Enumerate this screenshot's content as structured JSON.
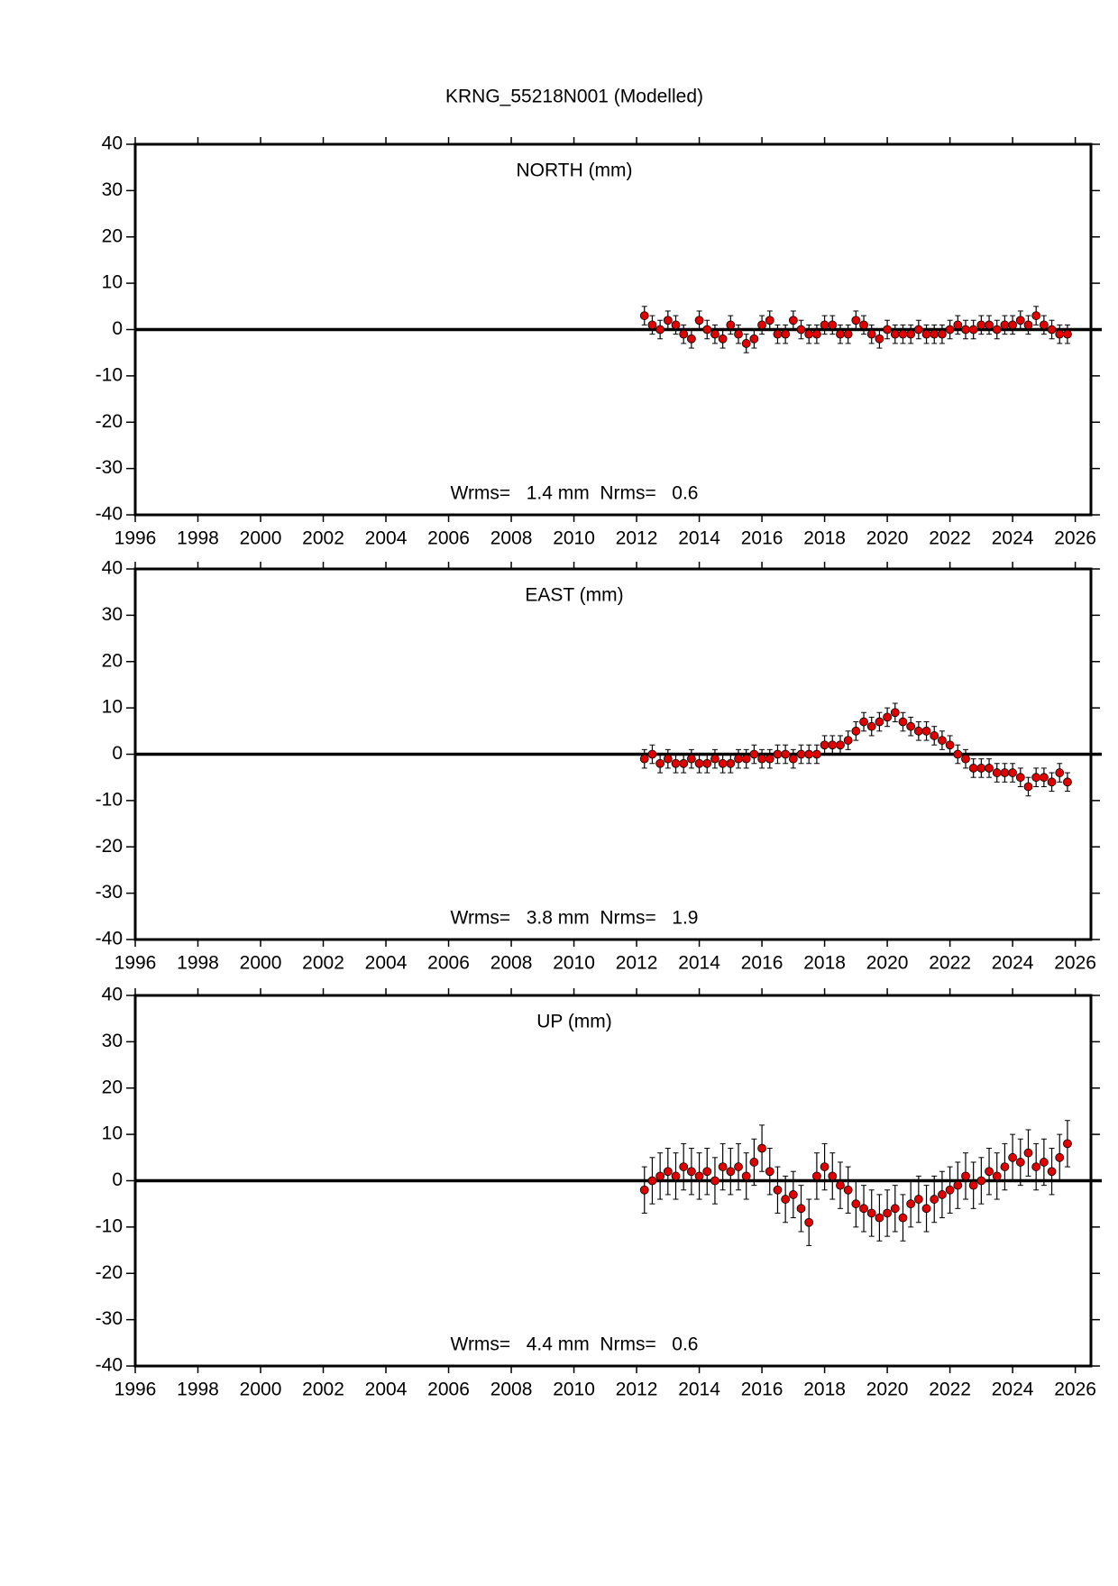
{
  "title": "KRNG_55218N001 (Modelled)",
  "chart_data": [
    {
      "type": "scatter",
      "label": "NORTH (mm)",
      "annotation": "Wrms=   1.4 mm  Nrms=   0.6",
      "xlim": [
        1996,
        2026.5
      ],
      "xticks": [
        1996,
        1998,
        2000,
        2002,
        2004,
        2006,
        2008,
        2010,
        2012,
        2014,
        2016,
        2018,
        2020,
        2022,
        2024,
        2026
      ],
      "ylim": [
        -40,
        40
      ],
      "yticks": [
        -40,
        -30,
        -20,
        -10,
        0,
        10,
        20,
        30,
        40
      ],
      "hline": 0,
      "color": "#e00000",
      "error": 2,
      "x": [
        2012.25,
        2012.5,
        2012.75,
        2013,
        2013.25,
        2013.5,
        2013.75,
        2014,
        2014.25,
        2014.5,
        2014.75,
        2015,
        2015.25,
        2015.5,
        2015.75,
        2016,
        2016.25,
        2016.5,
        2016.75,
        2017,
        2017.25,
        2017.5,
        2017.75,
        2018,
        2018.25,
        2018.5,
        2018.75,
        2019,
        2019.25,
        2019.5,
        2019.75,
        2020,
        2020.25,
        2020.5,
        2020.75,
        2021,
        2021.25,
        2021.5,
        2021.75,
        2022,
        2022.25,
        2022.5,
        2022.75,
        2023,
        2023.25,
        2023.5,
        2023.75,
        2024,
        2024.25,
        2024.5,
        2024.75,
        2025,
        2025.25,
        2025.5,
        2025.75
      ],
      "values": [
        3,
        1,
        0,
        2,
        1,
        -1,
        -2,
        2,
        0,
        -1,
        -2,
        1,
        -1,
        -3,
        -2,
        1,
        2,
        -1,
        -1,
        2,
        0,
        -1,
        -1,
        1,
        1,
        -1,
        -1,
        2,
        1,
        -1,
        -2,
        0,
        -1,
        -1,
        -1,
        0,
        -1,
        -1,
        -1,
        0,
        1,
        0,
        0,
        1,
        1,
        0,
        1,
        1,
        2,
        1,
        3,
        1,
        0,
        -1,
        -1
      ]
    },
    {
      "type": "scatter",
      "label": "EAST (mm)",
      "annotation": "Wrms=   3.8 mm  Nrms=   1.9",
      "xlim": [
        1996,
        2026.5
      ],
      "xticks": [
        1996,
        1998,
        2000,
        2002,
        2004,
        2006,
        2008,
        2010,
        2012,
        2014,
        2016,
        2018,
        2020,
        2022,
        2024,
        2026
      ],
      "ylim": [
        -40,
        40
      ],
      "yticks": [
        -40,
        -30,
        -20,
        -10,
        0,
        10,
        20,
        30,
        40
      ],
      "hline": 0,
      "color": "#e00000",
      "error": 2,
      "x": [
        2012.25,
        2012.5,
        2012.75,
        2013,
        2013.25,
        2013.5,
        2013.75,
        2014,
        2014.25,
        2014.5,
        2014.75,
        2015,
        2015.25,
        2015.5,
        2015.75,
        2016,
        2016.25,
        2016.5,
        2016.75,
        2017,
        2017.25,
        2017.5,
        2017.75,
        2018,
        2018.25,
        2018.5,
        2018.75,
        2019,
        2019.25,
        2019.5,
        2019.75,
        2020,
        2020.25,
        2020.5,
        2020.75,
        2021,
        2021.25,
        2021.5,
        2021.75,
        2022,
        2022.25,
        2022.5,
        2022.75,
        2023,
        2023.25,
        2023.5,
        2023.75,
        2024,
        2024.25,
        2024.5,
        2024.75,
        2025,
        2025.25,
        2025.5,
        2025.75
      ],
      "values": [
        -1,
        0,
        -2,
        -1,
        -2,
        -2,
        -1,
        -2,
        -2,
        -1,
        -2,
        -2,
        -1,
        -1,
        0,
        -1,
        -1,
        0,
        0,
        -1,
        0,
        0,
        0,
        2,
        2,
        2,
        3,
        5,
        7,
        6,
        7,
        8,
        9,
        7,
        6,
        5,
        5,
        4,
        3,
        2,
        0,
        -1,
        -3,
        -3,
        -3,
        -4,
        -4,
        -4,
        -5,
        -7,
        -5,
        -5,
        -6,
        -4,
        -6
      ]
    },
    {
      "type": "scatter",
      "label": "UP (mm)",
      "annotation": "Wrms=   4.4 mm  Nrms=   0.6",
      "xlim": [
        1996,
        2026.5
      ],
      "xticks": [
        1996,
        1998,
        2000,
        2002,
        2004,
        2006,
        2008,
        2010,
        2012,
        2014,
        2016,
        2018,
        2020,
        2022,
        2024,
        2026
      ],
      "ylim": [
        -40,
        40
      ],
      "yticks": [
        -40,
        -30,
        -20,
        -10,
        0,
        10,
        20,
        30,
        40
      ],
      "hline": 0,
      "color": "#e00000",
      "error": 5,
      "x": [
        2012.25,
        2012.5,
        2012.75,
        2013,
        2013.25,
        2013.5,
        2013.75,
        2014,
        2014.25,
        2014.5,
        2014.75,
        2015,
        2015.25,
        2015.5,
        2015.75,
        2016,
        2016.25,
        2016.5,
        2016.75,
        2017,
        2017.25,
        2017.5,
        2017.75,
        2018,
        2018.25,
        2018.5,
        2018.75,
        2019,
        2019.25,
        2019.5,
        2019.75,
        2020,
        2020.25,
        2020.5,
        2020.75,
        2021,
        2021.25,
        2021.5,
        2021.75,
        2022,
        2022.25,
        2022.5,
        2022.75,
        2023,
        2023.25,
        2023.5,
        2023.75,
        2024,
        2024.25,
        2024.5,
        2024.75,
        2025,
        2025.25,
        2025.5,
        2025.75
      ],
      "values": [
        -2,
        0,
        1,
        2,
        1,
        3,
        2,
        1,
        2,
        0,
        3,
        2,
        3,
        1,
        4,
        7,
        2,
        -2,
        -4,
        -3,
        -6,
        -9,
        1,
        3,
        1,
        -1,
        -2,
        -5,
        -6,
        -7,
        -8,
        -7,
        -6,
        -8,
        -5,
        -4,
        -6,
        -4,
        -3,
        -2,
        -1,
        1,
        -1,
        0,
        2,
        1,
        3,
        5,
        4,
        6,
        3,
        4,
        2,
        5,
        8
      ]
    }
  ]
}
